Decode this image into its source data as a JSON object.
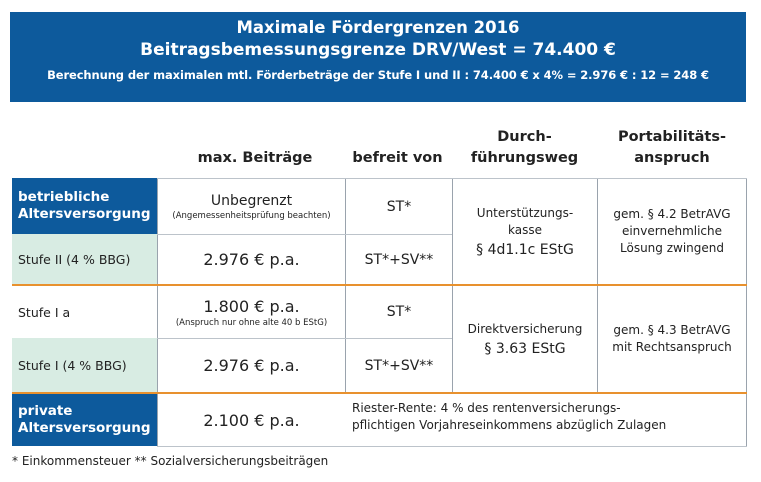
{
  "banner": {
    "title1": "Maximale Fördergrenzen 2016",
    "title2": "Beitragsbemessungsgrenze DRV/West = 74.400 €",
    "subtitle": "Berechnung der maximalen mtl. Förderbeträge der Stufe I und II :  74.400 € x 4% = 2.976 € : 12 = 248 €"
  },
  "headers": {
    "beitraege": "max. Beiträge",
    "befreit": "befreit von",
    "durchfuehrung_1": "Durch-",
    "durchfuehrung_2": "führungsweg",
    "portabilitaet_1": "Portabilitäts-",
    "portabilitaet_2": "anspruch"
  },
  "rows": {
    "bav_label_1": "betriebliche",
    "bav_label_2": "Altersversorgung",
    "bav_beitrag": "Unbegrenzt",
    "bav_note": "(Angemessenheitsprüfung beachten)",
    "bav_befreit": "ST*",
    "stufe2_label": "Stufe II (4 % BBG)",
    "stufe2_beitrag": "2.976 € p.a.",
    "stufe2_befreit": "ST*+SV**",
    "ukasse_1": "Unterstützungs-",
    "ukasse_2": "kasse",
    "ukasse_law": "§ 4d1.1c EStG",
    "port_top_1": "gem. § 4.2 BetrAVG",
    "port_top_2": "einvernehmliche",
    "port_top_3": "Lösung zwingend",
    "stufe1a_label": "Stufe I a",
    "stufe1a_beitrag": "1.800 € p.a.",
    "stufe1a_note": "(Anspruch nur ohne alte 40 b EStG)",
    "stufe1a_befreit": "ST*",
    "stufe1_label": "Stufe I (4 % BBG)",
    "stufe1_beitrag": "2.976 € p.a.",
    "stufe1_befreit": "ST*+SV**",
    "direkt_1": "Direktversicherung",
    "direkt_law": "§ 3.63 EStG",
    "port_bot_1": "gem. § 4.3 BetrAVG",
    "port_bot_2": "mit Rechtsanspruch",
    "private_label_1": "private",
    "private_label_2": "Altersversorgung",
    "private_beitrag": "2.100 € p.a.",
    "riester_1": "Riester-Rente: 4 % des rentenversicherungs-",
    "riester_2": "pflichtigen Vorjahreseinkommens abzüglich Zulagen"
  },
  "footnote": "* Einkommensteuer  ** Sozialversicherungsbeiträgen",
  "colors": {
    "blue": "#0d5a9c",
    "green": "#d8ece3",
    "orange": "#e8912e"
  }
}
